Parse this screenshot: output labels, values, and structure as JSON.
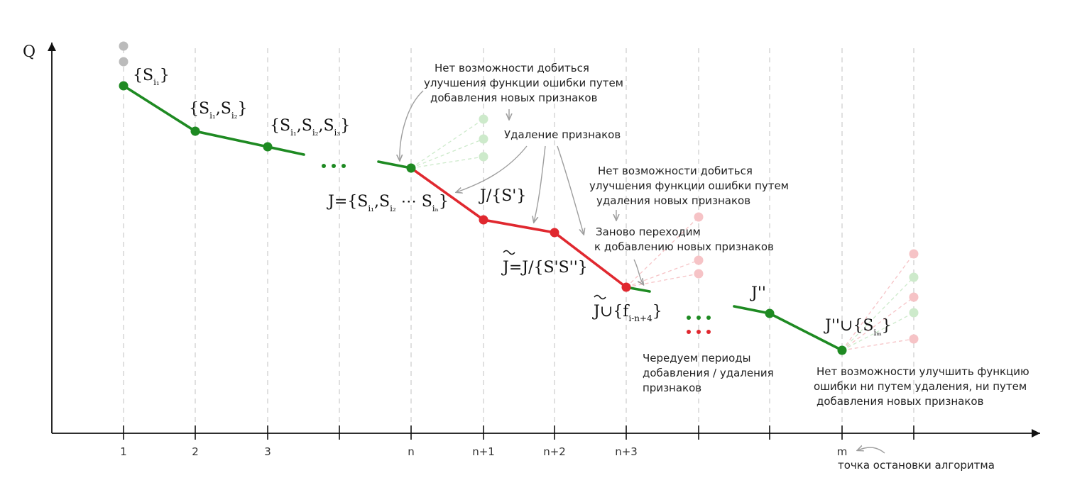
{
  "axis": {
    "y_label": "Q",
    "x_ticks": [
      "1",
      "2",
      "3",
      "n",
      "n+1",
      "n+2",
      "n+3",
      "m"
    ]
  },
  "colors": {
    "add": "#1e8a22",
    "remove": "#e0282f",
    "faded_add": "#cdeacb",
    "faded_remove": "#f6c3c6",
    "faded_gray": "#bbbbbb",
    "grid": "#cfcfcf",
    "arrow": "#9e9e9e"
  },
  "labels": {
    "s1": "{S",
    "s1_end": "}",
    "s12": "{S",
    "s123": "{S",
    "dots": "…",
    "j_set": "J={S",
    "j_minus_s": "J/{S'}",
    "j_tilde": "J=J/{S'S''}",
    "j_tilde_union": "J∪{f",
    "j_double": "J''",
    "j_double_union": "J''∪{S"
  },
  "subscripts": {
    "i1": "i₁",
    "i2": "i₂",
    "i3": "i₃",
    "in": "iₙ",
    "im": "iₘ",
    "f_idx": "i-n+4"
  },
  "annotations": {
    "no_add_1": "Нет возможности добиться",
    "no_add_2": "улучшения функции ошибки путем",
    "no_add_3": "добавления новых признаков",
    "removal": "Удаление признаков",
    "no_remove_1": "Нет возможности добиться",
    "no_remove_2": "улучшения функции ошибки путем",
    "no_remove_3": "удаления новых признаков",
    "back_1": "Заново переходим",
    "back_2": "к добавлению новых признаков",
    "alt_1": "Чередуем периоды",
    "alt_2": "добавления / удаления",
    "alt_3": "признаков",
    "final_1": "Нет возможности улучшить функцию",
    "final_2": "ошибки ни путем удаления, ни путем",
    "final_3": "добавления новых признаков",
    "stop": "точка остановки алгоритма"
  }
}
